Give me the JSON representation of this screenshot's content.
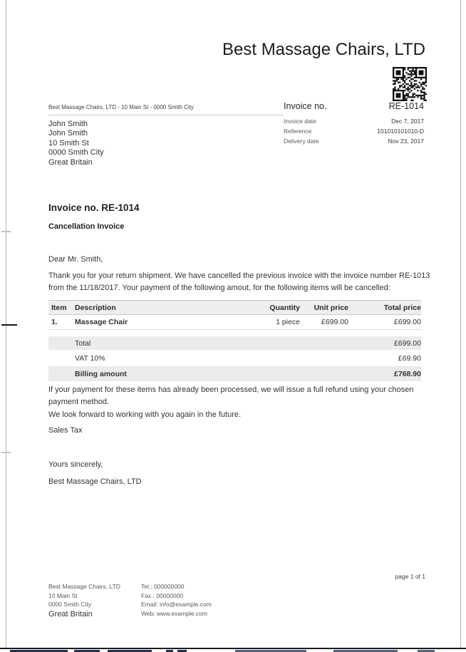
{
  "invoice": {
    "company_name": "Best Massage Chairs, LTD",
    "sender_line": "Best Massage Chairs, LTD - 10 Main St - 0000 Smith City",
    "recipient": [
      "John Smith",
      "John Smith",
      "10 Smith St",
      "0000 Smith City",
      "Great Britain"
    ],
    "meta": {
      "invoice_no_label": "Invoice no.",
      "invoice_no_value": "RE-1014",
      "rows": [
        {
          "label": "Invoice date",
          "value": "Dec 7, 2017"
        },
        {
          "label": "Reference",
          "value": "101010101010-D"
        },
        {
          "label": "Delivery date",
          "value": "Nov 23, 2017"
        }
      ]
    },
    "document_heading": "Invoice no. RE-1014",
    "document_subheading": "Cancellation Invoice",
    "salutation": "Dear Mr. Smith,",
    "intro_paragraph": "Thank you for your return shipment. We have cancelled the previous invoice with the invoice number RE-1013 from the 11/18/2017. Your payment of the following amout, for the following items will be cancelled:",
    "table": {
      "headers": [
        "Item",
        "Description",
        "Quantity",
        "Unit price",
        "Total price"
      ],
      "rows": [
        {
          "item": "1.",
          "description": "Massage Chair",
          "quantity": "1 piece",
          "unit_price": "£699.00",
          "total_price": "£699.00"
        }
      ],
      "totals": [
        {
          "label": "Total",
          "value": "£699.00"
        },
        {
          "label": "VAT 10%",
          "value": "£69.90"
        },
        {
          "label": "Billing amount",
          "value": "£768.90"
        }
      ]
    },
    "refund_paragraph": "If your payment for these items has already been processed, we will issue a full refund using your chosen payment method.",
    "farewell_paragraph": "We look forward to working with you again in the future.",
    "tax_note": "Sales Tax",
    "closing": "Yours sincerely,",
    "signature": "Best Massage Chairs, LTD",
    "footer": {
      "address_lines": [
        "Best Massage Chairs, LTD",
        "10 Main St",
        "0000 Smith City"
      ],
      "country": "Great Britain",
      "contact_lines": [
        "Tel.: 000000000",
        "Fax.: 00000000",
        "Email: info@example.com",
        "Web: www.example.com"
      ],
      "page_indicator": "page 1 of 1"
    }
  }
}
